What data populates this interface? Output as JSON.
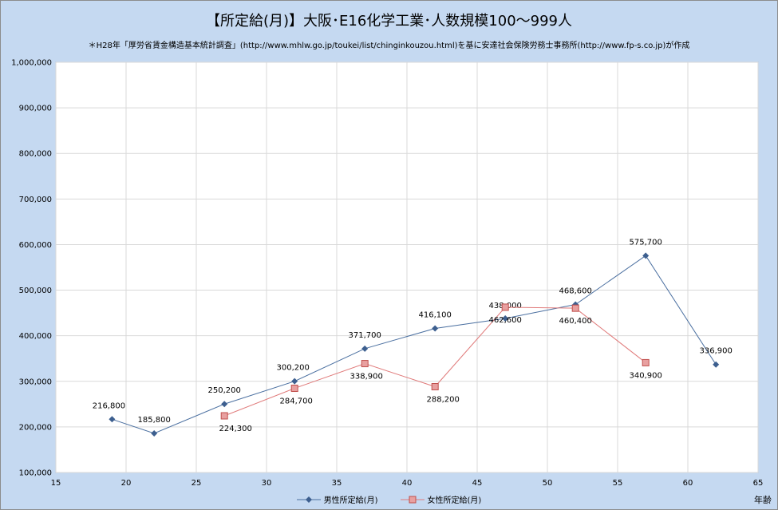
{
  "title": "【所定給(月)】大阪･E16化学工業･人数規模100～999人",
  "subtitle": "＊H28年「厚労省賃金構造基本統計調査」(http://www.mhlw.go.jp/toukei/list/chinginkouzou.html)を基に安達社会保険労務士事務所(http://www.fp-s.co.jp)が作成",
  "x_unit": "年齢",
  "chart_data": {
    "type": "line",
    "xlim": [
      15,
      65
    ],
    "ylim": [
      100000,
      1000000
    ],
    "x_ticks": [
      15,
      20,
      25,
      30,
      35,
      40,
      45,
      50,
      55,
      60,
      65
    ],
    "y_ticks": [
      100000,
      200000,
      300000,
      400000,
      500000,
      600000,
      700000,
      800000,
      900000,
      1000000
    ],
    "x_tick_labels": [
      "15",
      "20",
      "25",
      "30",
      "35",
      "40",
      "45",
      "50",
      "55",
      "60",
      "65"
    ],
    "y_tick_labels": [
      "100,000",
      "200,000",
      "300,000",
      "400,000",
      "500,000",
      "600,000",
      "700,000",
      "800,000",
      "900,000",
      "1,000,000"
    ],
    "grid": true,
    "legend_position": "bottom",
    "series": [
      {
        "name": "男性所定給(月)",
        "color": "#4a6fa0",
        "marker": "diamond",
        "x": [
          19,
          22,
          27,
          32,
          37,
          42,
          47,
          52,
          57,
          62
        ],
        "y": [
          216800,
          185800,
          250200,
          300200,
          371700,
          416100,
          438000,
          468600,
          575700,
          336900
        ],
        "labels": [
          "216,800",
          "185,800",
          "250,200",
          "300,200",
          "371,700",
          "416,100",
          "438,000",
          "468,600",
          "575,700",
          "336,900"
        ]
      },
      {
        "name": "女性所定給(月)",
        "color": "#e07a7a",
        "marker": "square",
        "x": [
          27,
          32,
          37,
          42,
          47,
          52,
          57
        ],
        "y": [
          224300,
          284700,
          338900,
          288200,
          462600,
          460400,
          340900
        ],
        "labels": [
          "224,300",
          "284,700",
          "338,900",
          "288,200",
          "462,600",
          "460,400",
          "340,900"
        ]
      }
    ]
  }
}
